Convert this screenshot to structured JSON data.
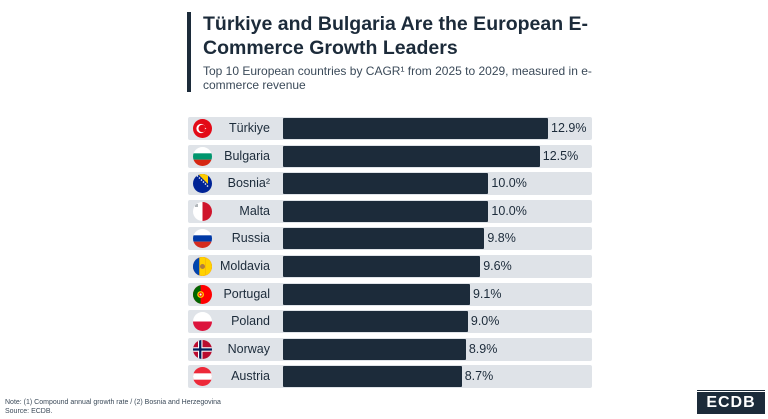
{
  "header": {
    "title": "Türkiye and Bulgaria Are the European E-Commerce Growth Leaders",
    "subtitle": "Top 10 European countries by CAGR¹ from 2025 to 2029, measured in e-commerce revenue"
  },
  "footer": {
    "note": "Note: (1) Compound annual growth rate / (2) Bosnia and Herzegovina",
    "source": "Source: ECDB.",
    "logo": "ECDB"
  },
  "colors": {
    "bar": "#1c2b3a",
    "track": "#dfe3e8"
  },
  "chart_data": {
    "type": "bar",
    "orientation": "horizontal",
    "title": "Türkiye and Bulgaria Are the European E-Commerce Growth Leaders",
    "subtitle": "Top 10 European countries by CAGR¹ from 2025 to 2029, measured in e-commerce revenue",
    "categories": [
      "Türkiye",
      "Bulgaria",
      "Bosnia²",
      "Malta",
      "Russia",
      "Moldavia",
      "Portugal",
      "Poland",
      "Norway",
      "Austria"
    ],
    "values": [
      12.9,
      12.5,
      10.0,
      10.0,
      9.8,
      9.6,
      9.1,
      9.0,
      8.9,
      8.7
    ],
    "value_labels": [
      "12.9%",
      "12.5%",
      "10.0%",
      "10.0%",
      "9.8%",
      "9.6%",
      "9.1%",
      "9.0%",
      "8.9%",
      "8.7%"
    ],
    "flag_icons": [
      "turkey-flag-icon",
      "bulgaria-flag-icon",
      "bosnia-flag-icon",
      "malta-flag-icon",
      "russia-flag-icon",
      "moldova-flag-icon",
      "portugal-flag-icon",
      "poland-flag-icon",
      "norway-flag-icon",
      "austria-flag-icon"
    ],
    "unit": "%",
    "xlim": [
      0,
      12.9
    ],
    "grid": false,
    "legend": "none"
  }
}
